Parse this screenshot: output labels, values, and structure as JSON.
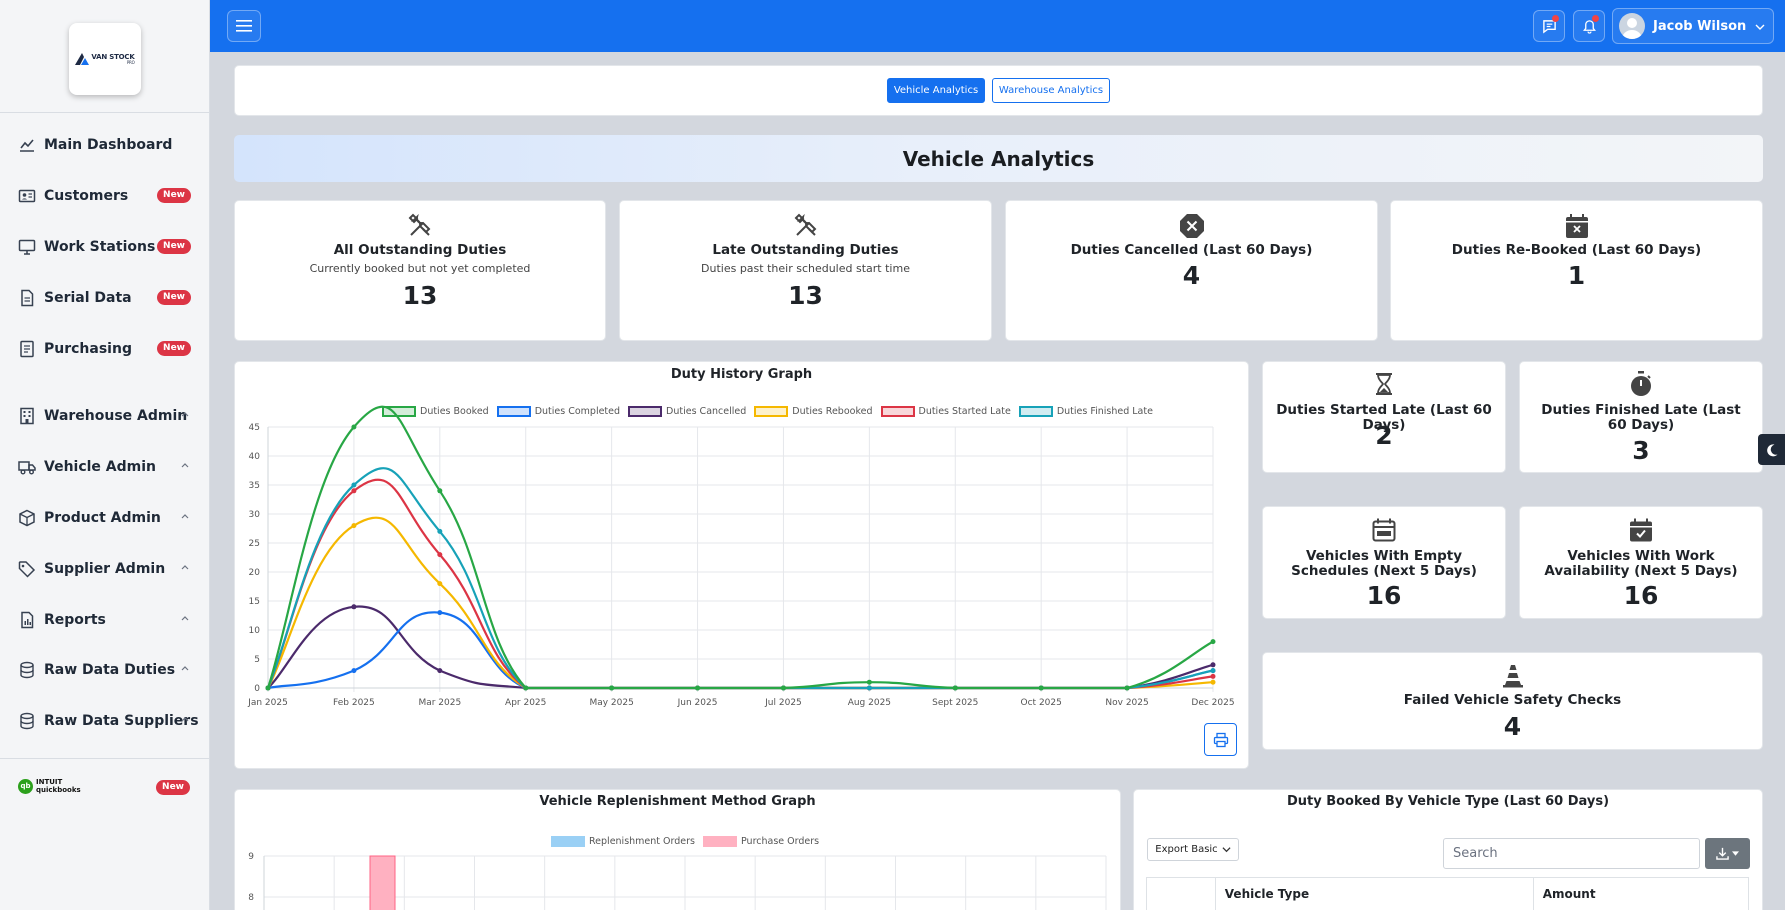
{
  "brand": {
    "logo_text": "VAN STOCK",
    "logo_sub": "PRO"
  },
  "sidebar": {
    "items": [
      {
        "label": "Main Dashboard",
        "icon": "chart-line-icon"
      },
      {
        "label": "Customers",
        "icon": "id-card-icon",
        "badge": "New"
      },
      {
        "label": "Work Stations",
        "icon": "monitor-icon",
        "badge": "New"
      },
      {
        "label": "Serial Data",
        "icon": "file-icon",
        "badge": "New"
      },
      {
        "label": "Purchasing",
        "icon": "receipt-icon",
        "badge": "New"
      },
      {
        "label": "Warehouse Admin",
        "icon": "building-icon"
      },
      {
        "label": "Vehicle Admin",
        "icon": "truck-icon"
      },
      {
        "label": "Product Admin",
        "icon": "box-icon"
      },
      {
        "label": "Supplier Admin",
        "icon": "tag-icon"
      },
      {
        "label": "Reports",
        "icon": "report-icon"
      },
      {
        "label": "Raw Data Duties",
        "icon": "database-icon"
      },
      {
        "label": "Raw Data Suppliers",
        "icon": "database-icon"
      }
    ],
    "quickbooks": {
      "brand_top": "INTUIT",
      "brand_bottom": "quickbooks",
      "badge": "New"
    }
  },
  "topbar": {
    "user_name": "Jacob Wilson"
  },
  "tabs": {
    "vehicle": "Vehicle Analytics",
    "warehouse": "Warehouse Analytics"
  },
  "page_title": "Vehicle Analytics",
  "stats": {
    "all_outstanding": {
      "title": "All Outstanding Duties",
      "subtitle": "Currently booked but not yet completed",
      "value": "13"
    },
    "late_outstanding": {
      "title": "Late Outstanding Duties",
      "subtitle": "Duties past their scheduled start time",
      "value": "13"
    },
    "cancelled": {
      "title": "Duties Cancelled (Last 60 Days)",
      "value": "4"
    },
    "rebooked": {
      "title": "Duties Re-Booked (Last 60 Days)",
      "value": "1"
    },
    "started_late": {
      "title": "Duties Started Late (Last 60 Days)",
      "value": "2"
    },
    "finished_late": {
      "title": "Duties Finished Late (Last 60 Days)",
      "value": "3"
    },
    "empty_schedules": {
      "title": "Vehicles With Empty Schedules (Next 5 Days)",
      "value": "16"
    },
    "work_availability": {
      "title": "Vehicles With Work Availability (Next 5 Days)",
      "value": "16"
    },
    "safety_checks": {
      "title": "Failed Vehicle Safety Checks",
      "value": "4"
    }
  },
  "duty_chart_title": "Duty History Graph",
  "replenish_chart_title": "Vehicle Replenishment Method Graph",
  "table": {
    "title": "Duty Booked By Vehicle Type (Last 60 Days)",
    "export_label": "Export Basic",
    "search_placeholder": "Search",
    "columns": [
      "",
      "Vehicle Type",
      "Amount"
    ]
  },
  "chart_data": [
    {
      "type": "line",
      "title": "Duty History Graph",
      "categories": [
        "Jan 2025",
        "Feb 2025",
        "Mar 2025",
        "Apr 2025",
        "May 2025",
        "Jun 2025",
        "Jul 2025",
        "Aug 2025",
        "Sept 2025",
        "Oct 2025",
        "Nov 2025",
        "Dec 2025"
      ],
      "ylim": [
        0,
        45
      ],
      "yticks": [
        0,
        5,
        10,
        15,
        20,
        25,
        30,
        35,
        40,
        45
      ],
      "grid": true,
      "legend": "top",
      "series": [
        {
          "name": "Duties Booked",
          "color": "#28a745",
          "values": [
            0,
            45,
            34,
            0,
            0,
            0,
            0,
            1,
            0,
            0,
            0,
            8
          ]
        },
        {
          "name": "Duties Completed",
          "color": "#1570ef",
          "values": [
            0,
            3,
            13,
            0,
            0,
            0,
            0,
            0,
            0,
            0,
            0,
            3
          ]
        },
        {
          "name": "Duties Cancelled",
          "color": "#4b2a6b",
          "values": [
            0,
            14,
            3,
            0,
            0,
            0,
            0,
            0,
            0,
            0,
            0,
            4
          ]
        },
        {
          "name": "Duties Rebooked",
          "color": "#f5b800",
          "values": [
            0,
            28,
            18,
            0,
            0,
            0,
            0,
            0,
            0,
            0,
            0,
            1
          ]
        },
        {
          "name": "Duties Started Late",
          "color": "#dc3545",
          "values": [
            0,
            34,
            23,
            0,
            0,
            0,
            0,
            0,
            0,
            0,
            0,
            2
          ]
        },
        {
          "name": "Duties Finished Late",
          "color": "#17a2b8",
          "values": [
            0,
            35,
            27,
            0,
            0,
            0,
            0,
            0,
            0,
            0,
            0,
            3
          ]
        }
      ]
    },
    {
      "type": "bar",
      "title": "Vehicle Replenishment Method Graph",
      "ylim_visible": [
        8,
        9
      ],
      "yticks": [
        8,
        9
      ],
      "legend": "top",
      "series": [
        {
          "name": "Replenishment Orders",
          "color": "#9ad0f5"
        },
        {
          "name": "Purchase Orders",
          "color": "#ffb1c1"
        }
      ]
    }
  ]
}
